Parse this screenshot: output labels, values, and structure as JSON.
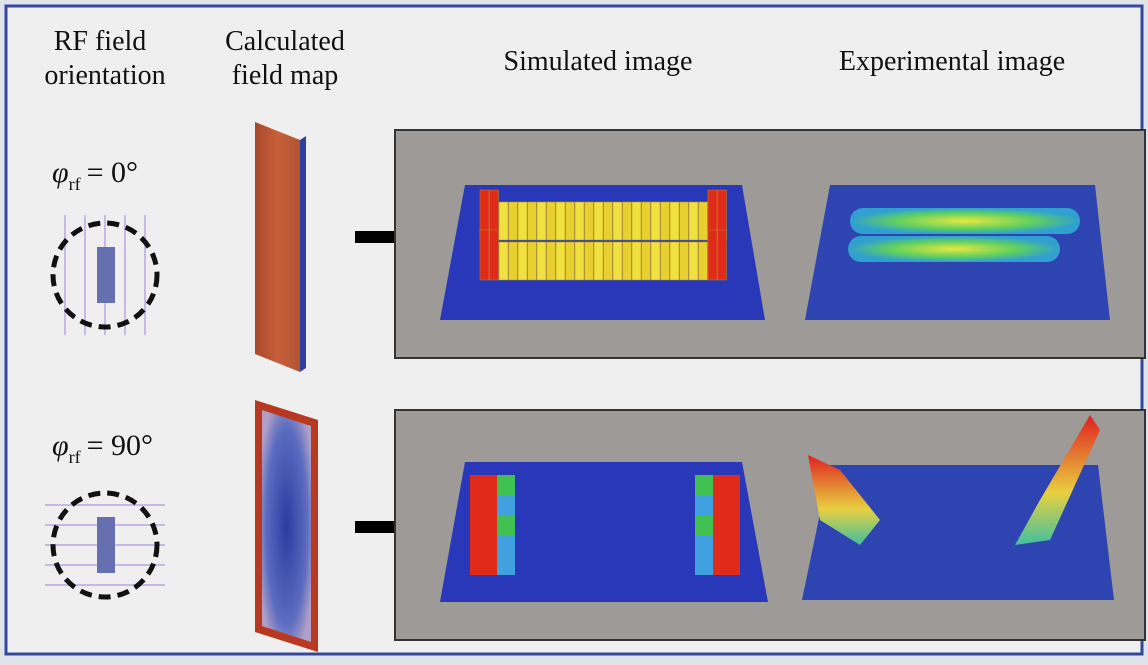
{
  "headers": {
    "orientation": [
      "RF field",
      "orientation"
    ],
    "field_map": [
      "Calculated",
      "field map"
    ],
    "simulated": "Simulated image",
    "experimental": "Experimental image"
  },
  "rows": [
    {
      "symbol": "φ",
      "subscript": "rf",
      "rest": "= 0°"
    },
    {
      "symbol": "φ",
      "subscript": "rf",
      "rest": "= 90°"
    }
  ]
}
